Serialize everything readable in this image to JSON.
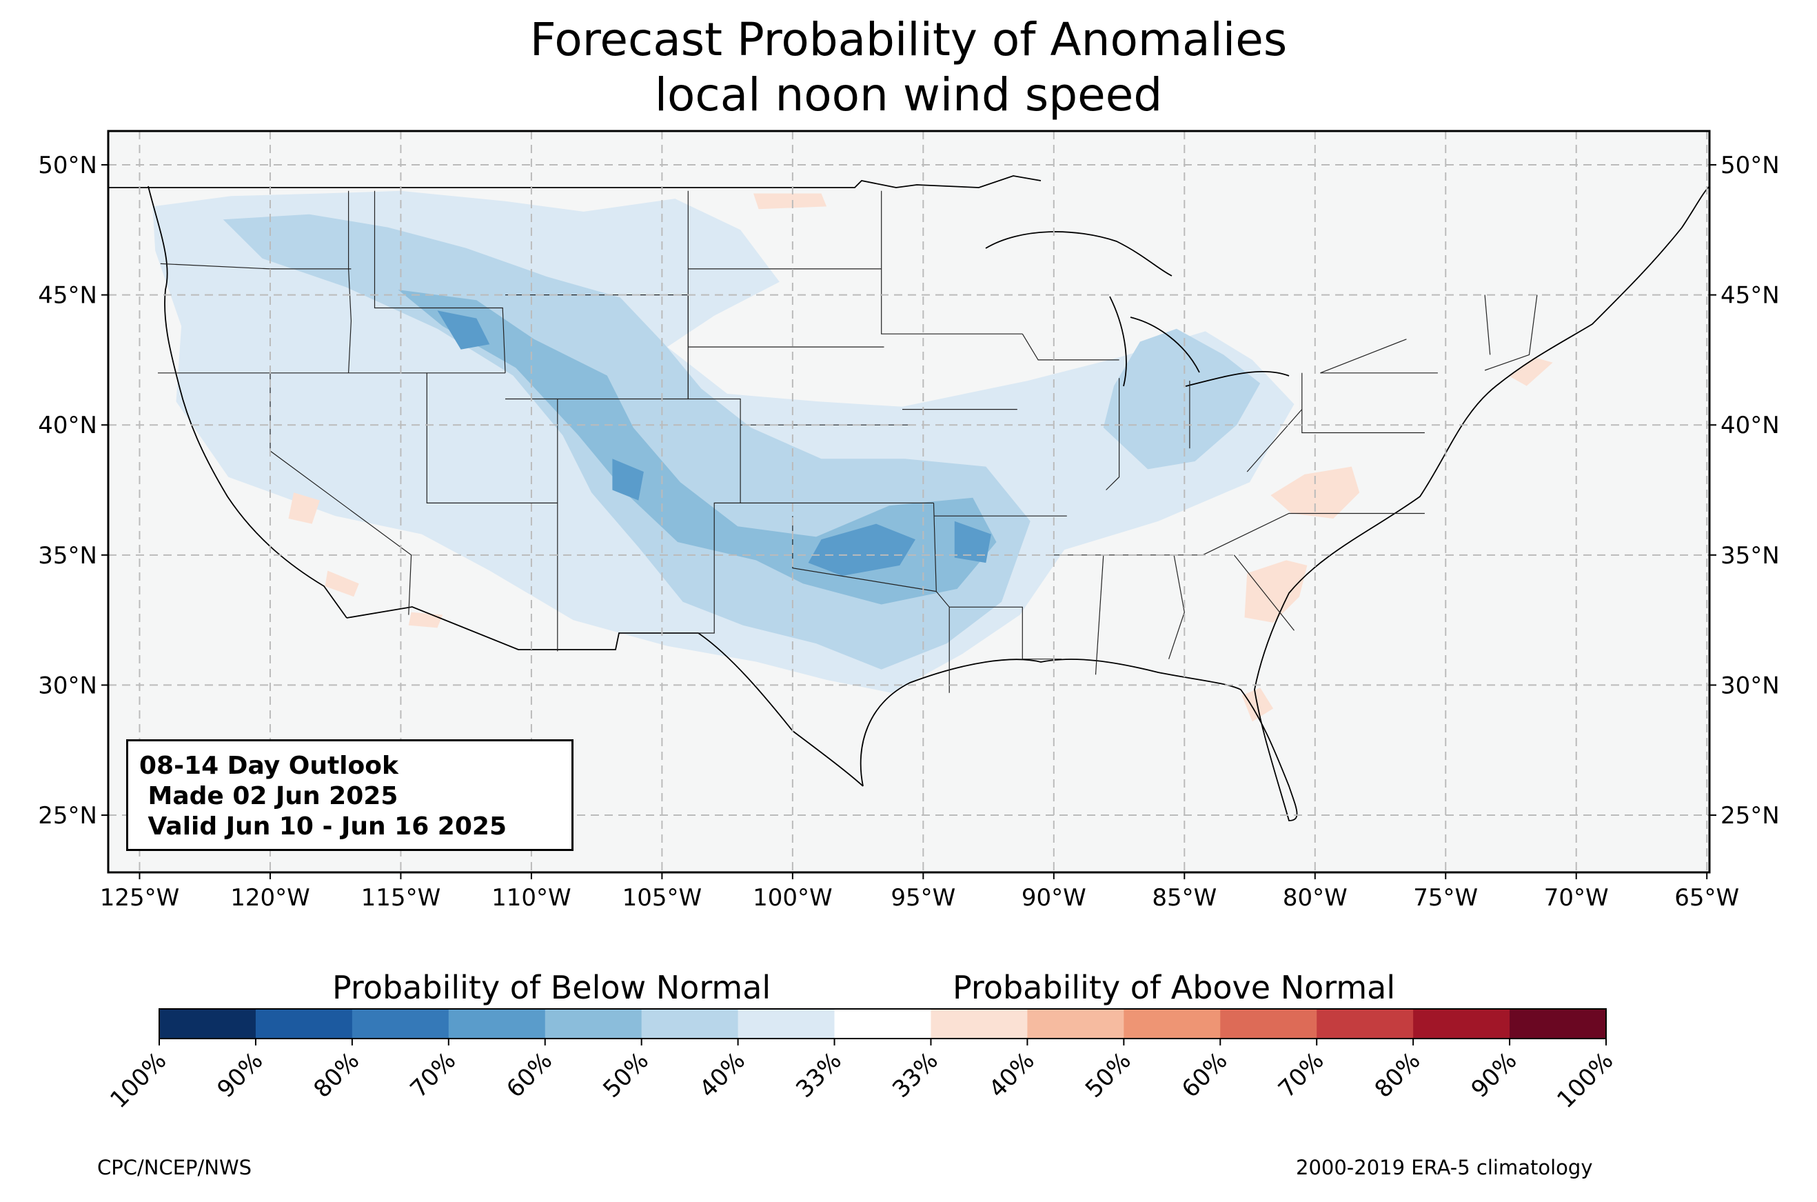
{
  "title": {
    "line1": "Forecast Probability of Anomalies",
    "line2": "local noon wind speed"
  },
  "map": {
    "extent_lon": [
      -126.2,
      -64.9
    ],
    "extent_lat": [
      22.8,
      51.3
    ],
    "lon_ticks": [
      -125,
      -120,
      -115,
      -110,
      -105,
      -100,
      -95,
      -90,
      -85,
      -80,
      -75,
      -70,
      -65
    ],
    "lon_tick_labels": [
      "125°W",
      "120°W",
      "115°W",
      "110°W",
      "105°W",
      "100°W",
      "95°W",
      "90°W",
      "85°W",
      "80°W",
      "75°W",
      "70°W",
      "65°W"
    ],
    "lat_ticks": [
      25,
      30,
      35,
      40,
      45,
      50
    ],
    "lat_tick_labels": [
      "25°N",
      "30°N",
      "35°N",
      "40°N",
      "45°N",
      "50°N"
    ],
    "grid": true,
    "land_color": "#f5f6f6",
    "anomaly_areas": [
      {
        "category": "below-40",
        "points": [
          [
            -124.5,
            48.4
          ],
          [
            -121.5,
            48.8
          ],
          [
            -118,
            48.9
          ],
          [
            -115,
            49
          ],
          [
            -111,
            48.6
          ],
          [
            -108,
            48.2
          ],
          [
            -104.5,
            48.7
          ],
          [
            -102,
            47.5
          ],
          [
            -100.5,
            45.5
          ],
          [
            -103,
            44.2
          ],
          [
            -104.8,
            43
          ],
          [
            -102.5,
            41.2
          ],
          [
            -99,
            40.9
          ],
          [
            -95.8,
            40.7
          ],
          [
            -91,
            41.7
          ],
          [
            -87.5,
            42.6
          ],
          [
            -84.2,
            43.6
          ],
          [
            -82.4,
            42.5
          ],
          [
            -80.8,
            40.8
          ],
          [
            -82.5,
            37.8
          ],
          [
            -86,
            36.3
          ],
          [
            -89.6,
            35.2
          ],
          [
            -91.3,
            32.7
          ],
          [
            -93.5,
            31.2
          ],
          [
            -96.2,
            29.7
          ],
          [
            -98.7,
            30.2
          ],
          [
            -101.4,
            30.9
          ],
          [
            -104.8,
            31.5
          ],
          [
            -108.4,
            32.5
          ],
          [
            -111.6,
            34.4
          ],
          [
            -114.2,
            35.8
          ],
          [
            -117.5,
            36.5
          ],
          [
            -121.6,
            38
          ],
          [
            -123.6,
            40.9
          ],
          [
            -123.4,
            43.8
          ],
          [
            -124.4,
            46.7
          ]
        ]
      },
      {
        "category": "below-50",
        "points": [
          [
            -121.8,
            47.9
          ],
          [
            -118.5,
            48.1
          ],
          [
            -115.5,
            47.6
          ],
          [
            -112.5,
            46.8
          ],
          [
            -109.4,
            45.7
          ],
          [
            -106.6,
            44.9
          ],
          [
            -104.9,
            43.1
          ],
          [
            -103.5,
            41.4
          ],
          [
            -101.6,
            39.9
          ],
          [
            -98.9,
            38.7
          ],
          [
            -95.7,
            38.7
          ],
          [
            -92.6,
            38.4
          ],
          [
            -90.9,
            36.3
          ],
          [
            -92,
            33.2
          ],
          [
            -94.1,
            31.6
          ],
          [
            -96.6,
            30.6
          ],
          [
            -99.1,
            31.6
          ],
          [
            -101.9,
            32.3
          ],
          [
            -104.2,
            33.2
          ],
          [
            -105.9,
            35.3
          ],
          [
            -107.7,
            37.4
          ],
          [
            -108.8,
            39.6
          ],
          [
            -110.7,
            41.9
          ],
          [
            -113.6,
            43.7
          ],
          [
            -117.1,
            45.3
          ],
          [
            -120.3,
            46.4
          ]
        ]
      },
      {
        "category": "below-50",
        "points": [
          [
            -86.7,
            43.2
          ],
          [
            -85.3,
            43.7
          ],
          [
            -83.5,
            42.7
          ],
          [
            -82.1,
            41.6
          ],
          [
            -83,
            40
          ],
          [
            -84.6,
            38.6
          ],
          [
            -86.4,
            38.3
          ],
          [
            -88.1,
            39.9
          ],
          [
            -87.7,
            41.5
          ]
        ]
      },
      {
        "category": "below-60",
        "points": [
          [
            -115.1,
            45.2
          ],
          [
            -112.1,
            44.8
          ],
          [
            -109.9,
            43.3
          ],
          [
            -107.1,
            41.9
          ],
          [
            -106.1,
            39.9
          ],
          [
            -104.3,
            37.8
          ],
          [
            -102.1,
            36.1
          ],
          [
            -99.1,
            35.7
          ],
          [
            -96.3,
            36.9
          ],
          [
            -93.1,
            37.2
          ],
          [
            -92.2,
            35.5
          ],
          [
            -93.7,
            33.7
          ],
          [
            -96.6,
            33.1
          ],
          [
            -99.6,
            33.9
          ],
          [
            -101.4,
            34.8
          ],
          [
            -104.4,
            35.5
          ],
          [
            -106.3,
            37.3
          ],
          [
            -108.2,
            39.6
          ],
          [
            -110.6,
            42.2
          ],
          [
            -113.4,
            43.8
          ]
        ]
      },
      {
        "category": "below-70",
        "points": [
          [
            -113.6,
            44.4
          ],
          [
            -112.1,
            44.1
          ],
          [
            -111.6,
            43.1
          ],
          [
            -112.7,
            42.9
          ]
        ]
      },
      {
        "category": "below-70",
        "points": [
          [
            -106.9,
            38.7
          ],
          [
            -105.7,
            38.2
          ],
          [
            -105.9,
            37.1
          ],
          [
            -106.9,
            37.5
          ]
        ]
      },
      {
        "category": "below-70",
        "points": [
          [
            -98.9,
            35.6
          ],
          [
            -96.8,
            36.2
          ],
          [
            -95.3,
            35.6
          ],
          [
            -95.9,
            34.6
          ],
          [
            -98.1,
            34.2
          ],
          [
            -99.4,
            34.7
          ]
        ]
      },
      {
        "category": "below-70",
        "points": [
          [
            -93.8,
            36.3
          ],
          [
            -92.4,
            35.8
          ],
          [
            -92.6,
            34.7
          ],
          [
            -93.8,
            34.9
          ]
        ]
      },
      {
        "category": "above-40",
        "points": [
          [
            -81.7,
            37.3
          ],
          [
            -80.4,
            38.1
          ],
          [
            -78.6,
            38.4
          ],
          [
            -78.3,
            37.4
          ],
          [
            -79.3,
            36.4
          ],
          [
            -80.9,
            36.6
          ]
        ]
      },
      {
        "category": "above-40",
        "points": [
          [
            -82.6,
            34.3
          ],
          [
            -81.1,
            34.8
          ],
          [
            -80.3,
            34.6
          ],
          [
            -80.6,
            33.4
          ],
          [
            -81.6,
            32.4
          ],
          [
            -82.7,
            32.6
          ]
        ]
      },
      {
        "category": "above-40",
        "points": [
          [
            -82.8,
            29.6
          ],
          [
            -82.1,
            29.9
          ],
          [
            -81.6,
            29.1
          ],
          [
            -82.4,
            28.6
          ]
        ]
      },
      {
        "category": "above-40",
        "points": [
          [
            -101.5,
            48.9
          ],
          [
            -98.9,
            48.9
          ],
          [
            -98.7,
            48.4
          ],
          [
            -101.3,
            48.3
          ]
        ]
      },
      {
        "category": "above-40",
        "points": [
          [
            -119.1,
            37.4
          ],
          [
            -118.1,
            37.1
          ],
          [
            -118.4,
            36.2
          ],
          [
            -119.3,
            36.4
          ]
        ]
      },
      {
        "category": "above-40",
        "points": [
          [
            -114.6,
            32.8
          ],
          [
            -113.4,
            32.7
          ],
          [
            -113.6,
            32.2
          ],
          [
            -114.7,
            32.3
          ]
        ]
      },
      {
        "category": "above-40",
        "points": [
          [
            -117.8,
            34.4
          ],
          [
            -116.6,
            33.9
          ],
          [
            -116.8,
            33.4
          ],
          [
            -117.9,
            33.8
          ]
        ]
      },
      {
        "category": "above-40",
        "points": [
          [
            -72.6,
            41.9
          ],
          [
            -71.6,
            42.6
          ],
          [
            -70.9,
            42.4
          ],
          [
            -71.9,
            41.5
          ]
        ]
      }
    ]
  },
  "outlook_box": {
    "line1": "08-14 Day Outlook",
    "line2": " Made 02 Jun 2025",
    "line3": " Valid Jun 10 - Jun 16 2025"
  },
  "colorbar": {
    "label_below": "Probability of Below Normal",
    "label_above": "Probability of Above Normal",
    "colors": [
      "#0b2f63",
      "#1c5aa0",
      "#3579b8",
      "#5a9ccb",
      "#8bbddb",
      "#b8d6ea",
      "#dbe9f4",
      "#ffffff",
      "#fbe1d4",
      "#f6bba0",
      "#ee9574",
      "#dd6b57",
      "#c43d3f",
      "#a11628",
      "#6a0722"
    ],
    "tick_labels": [
      "100%",
      "90%",
      "80%",
      "70%",
      "60%",
      "50%",
      "40%",
      "33%",
      "33%",
      "40%",
      "50%",
      "60%",
      "70%",
      "80%",
      "90%",
      "100%"
    ]
  },
  "category_colors": {
    "below-40": "#dbe9f4",
    "below-50": "#b8d6ea",
    "below-60": "#8bbddb",
    "below-70": "#5a9ccb",
    "above-40": "#fbe1d4"
  },
  "credits": {
    "left": "CPC/NCEP/NWS",
    "right": "2000-2019 ERA-5 climatology"
  }
}
